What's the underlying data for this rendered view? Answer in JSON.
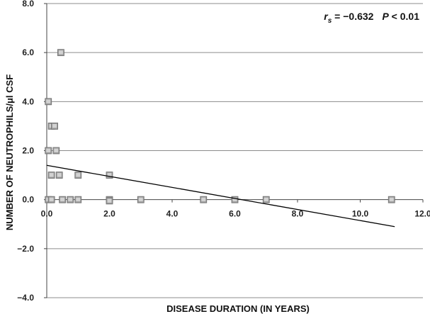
{
  "chart_data": {
    "type": "scatter",
    "xlabel": "DISEASE DURATION (IN YEARS)",
    "ylabel": "NUMBER OF NEUTROPHILS/μl CSF",
    "xlim": [
      0,
      12
    ],
    "ylim": [
      -4,
      8
    ],
    "x_ticks": [
      "0.0",
      "2.0",
      "4.0",
      "6.0",
      "8.0",
      "10.0",
      "12.0"
    ],
    "y_ticks": [
      "8.0",
      "6.0",
      "4.0",
      "2.0",
      "0.0",
      "−2.0",
      "−4.0"
    ],
    "grid": true,
    "legend": "none",
    "marker_color": "#9a9a9a",
    "trend_line_color": "#000000",
    "annotation": {
      "r_symbol": "r",
      "r_subscript": "s",
      "r_value": " = −0.632",
      "p_symbol": "P",
      "p_value": " < 0.01"
    },
    "points": [
      {
        "x": 0.05,
        "y": 4
      },
      {
        "x": 0.05,
        "y": 2
      },
      {
        "x": 0.05,
        "y": 0
      },
      {
        "x": 0.15,
        "y": 3
      },
      {
        "x": 0.15,
        "y": 1
      },
      {
        "x": 0.15,
        "y": 0
      },
      {
        "x": 0.25,
        "y": 3
      },
      {
        "x": 0.3,
        "y": 2
      },
      {
        "x": 0.4,
        "y": 1
      },
      {
        "x": 0.45,
        "y": 6
      },
      {
        "x": 0.5,
        "y": 0
      },
      {
        "x": 0.75,
        "y": 0
      },
      {
        "x": 1.0,
        "y": 1
      },
      {
        "x": 1.0,
        "y": 0
      },
      {
        "x": 2.0,
        "y": 1
      },
      {
        "x": 2.0,
        "y": 0
      },
      {
        "x": 2.0,
        "y": -0.05
      },
      {
        "x": 3.0,
        "y": 0
      },
      {
        "x": 5.0,
        "y": 0
      },
      {
        "x": 6.0,
        "y": 0
      },
      {
        "x": 7.0,
        "y": 0
      },
      {
        "x": 11.0,
        "y": 0
      }
    ],
    "trend_line": {
      "x": [
        0,
        11.1
      ],
      "y": [
        1.4,
        -1.1
      ]
    }
  }
}
